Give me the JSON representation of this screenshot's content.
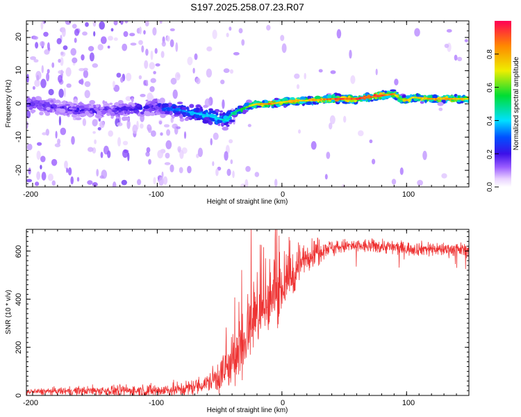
{
  "title": "S197.2025.258.07.23.R07",
  "colors": {
    "snr_line": "#ee3333",
    "axis": "#000000",
    "background": "#ffffff"
  },
  "chart_data": [
    {
      "type": "heatmap",
      "name": "spectrogram",
      "xlabel": "Height of straight line (km)",
      "ylabel": "Frequency (Hz)",
      "xlim": [
        -205,
        150
      ],
      "ylim": [
        -25,
        25
      ],
      "xticks": [
        -200,
        -100,
        0,
        100
      ],
      "yticks": [
        -20,
        -10,
        0,
        10,
        20
      ],
      "xtick_labels": [
        "-200",
        "-100",
        "0",
        "100"
      ],
      "ytick_labels": [
        "-20",
        "-10",
        "0",
        "10",
        "20"
      ],
      "ridge": {
        "x": [
          -205,
          -180,
          -160,
          -140,
          -120,
          -100,
          -80,
          -60,
          -45,
          -40,
          -35,
          -25,
          -20,
          -10,
          0,
          10,
          20,
          40,
          60,
          80,
          90,
          95,
          100,
          105,
          120,
          150
        ],
        "freq": [
          0,
          -1,
          -2,
          -2,
          -1.5,
          -1,
          -2,
          -3.5,
          -5,
          -3,
          -2,
          -0.5,
          0,
          0,
          0.5,
          1,
          1,
          1.5,
          1.5,
          2.5,
          3,
          1.5,
          1,
          2,
          1.5,
          1.5
        ],
        "amplitude": [
          0.2,
          0.18,
          0.2,
          0.18,
          0.22,
          0.28,
          0.35,
          0.4,
          0.45,
          0.5,
          0.55,
          0.65,
          0.8,
          0.9,
          0.7,
          0.85,
          0.75,
          0.9,
          0.95,
          0.9,
          0.85,
          0.6,
          0.8,
          0.7,
          0.85,
          0.75
        ]
      }
    },
    {
      "type": "colorbar",
      "name": "amplitude-colorbar",
      "label": "Normalized spectral amplitude",
      "range": [
        0,
        1
      ],
      "ticks": [
        0,
        0.2,
        0.4,
        0.6,
        0.8
      ],
      "tick_labels": [
        "0.0",
        "0.2",
        "0.4",
        "0.6",
        "0.8"
      ]
    },
    {
      "type": "line",
      "name": "snr-line",
      "xlabel": "Height of straight line (km)",
      "ylabel": "SNR (10 * v/v)",
      "xlim": [
        -205,
        150
      ],
      "ylim": [
        0,
        690
      ],
      "xticks": [
        -200,
        -100,
        0,
        100
      ],
      "yticks": [
        0,
        200,
        400,
        600
      ],
      "xtick_labels": [
        "-200",
        "-100",
        "0",
        "100"
      ],
      "ytick_labels": [
        "0",
        "200",
        "400",
        "600"
      ],
      "trend": {
        "x": [
          -205,
          -150,
          -100,
          -80,
          -60,
          -40,
          -30,
          -25,
          -20,
          -10,
          0,
          10,
          20,
          30,
          50,
          80,
          100,
          120,
          150
        ],
        "y": [
          15,
          20,
          20,
          25,
          50,
          120,
          250,
          300,
          320,
          390,
          450,
          510,
          580,
          610,
          620,
          620,
          610,
          610,
          605
        ]
      },
      "noise": {
        "x": [
          -205,
          -60,
          -40,
          -30,
          -20,
          0,
          20,
          40,
          150
        ],
        "amp": [
          12,
          35,
          120,
          170,
          150,
          110,
          60,
          30,
          28
        ]
      },
      "samples": 1600
    }
  ]
}
